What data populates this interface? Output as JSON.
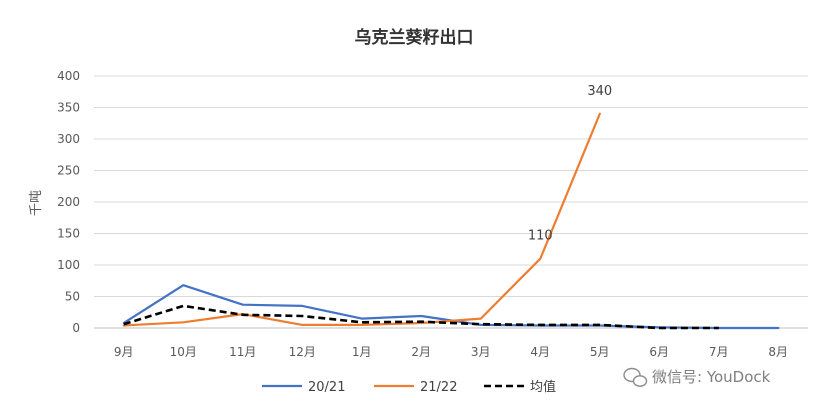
{
  "chart_data": {
    "type": "line",
    "title": "乌克兰葵籽出口",
    "ylabel": "千吨",
    "xlabel": "",
    "categories": [
      "9月",
      "10月",
      "11月",
      "12月",
      "1月",
      "2月",
      "3月",
      "4月",
      "5月",
      "6月",
      "7月",
      "8月"
    ],
    "ylim": [
      0,
      400
    ],
    "yticks": [
      0,
      50,
      100,
      150,
      200,
      250,
      300,
      350,
      400
    ],
    "grid": true,
    "legend_position": "bottom",
    "series": [
      {
        "name": "20/21",
        "color": "#4472C4",
        "style": "solid",
        "values": [
          8,
          68,
          37,
          35,
          15,
          19,
          5,
          4,
          4,
          1,
          0,
          0
        ]
      },
      {
        "name": "21/22",
        "color": "#ED7D31",
        "style": "solid",
        "values": [
          4,
          9,
          22,
          5,
          5,
          8,
          15,
          110,
          340,
          null,
          null,
          null
        ]
      },
      {
        "name": "均值",
        "color": "#000000",
        "style": "dashed",
        "values": [
          6,
          35,
          21,
          19,
          9,
          10,
          6,
          5,
          5,
          0,
          0,
          null
        ]
      }
    ],
    "annotations": [
      {
        "series": "21/22",
        "category": "4月",
        "label": "110"
      },
      {
        "series": "21/22",
        "category": "5月",
        "label": "340"
      }
    ]
  },
  "watermark": {
    "text": "微信号: YouDock",
    "icon": "wechat-icon"
  }
}
